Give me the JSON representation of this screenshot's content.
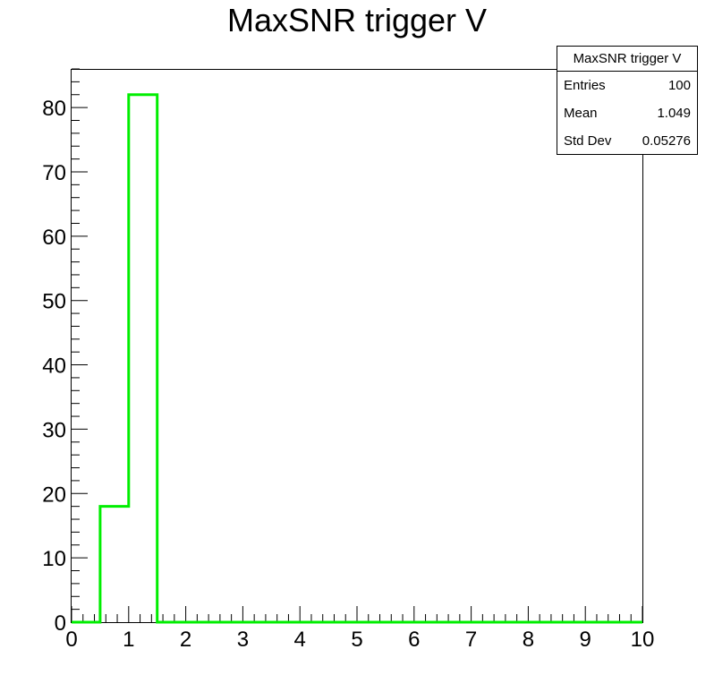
{
  "chart_data": {
    "type": "histogram",
    "title": "MaxSNR trigger V",
    "xlim": [
      0,
      10
    ],
    "ylim": [
      0,
      86
    ],
    "bin_width": 0.5,
    "bins": [
      {
        "x0": 0.0,
        "x1": 0.5,
        "value": 0
      },
      {
        "x0": 0.5,
        "x1": 1.0,
        "value": 18
      },
      {
        "x0": 1.0,
        "x1": 1.5,
        "value": 82
      },
      {
        "x0": 1.5,
        "x1": 2.0,
        "value": 0
      },
      {
        "x0": 2.0,
        "x1": 2.5,
        "value": 0
      },
      {
        "x0": 2.5,
        "x1": 3.0,
        "value": 0
      },
      {
        "x0": 3.0,
        "x1": 3.5,
        "value": 0
      },
      {
        "x0": 3.5,
        "x1": 4.0,
        "value": 0
      },
      {
        "x0": 4.0,
        "x1": 4.5,
        "value": 0
      },
      {
        "x0": 4.5,
        "x1": 5.0,
        "value": 0
      },
      {
        "x0": 5.0,
        "x1": 5.5,
        "value": 0
      },
      {
        "x0": 5.5,
        "x1": 6.0,
        "value": 0
      },
      {
        "x0": 6.0,
        "x1": 6.5,
        "value": 0
      },
      {
        "x0": 6.5,
        "x1": 7.0,
        "value": 0
      },
      {
        "x0": 7.0,
        "x1": 7.5,
        "value": 0
      },
      {
        "x0": 7.5,
        "x1": 8.0,
        "value": 0
      },
      {
        "x0": 8.0,
        "x1": 8.5,
        "value": 0
      },
      {
        "x0": 8.5,
        "x1": 9.0,
        "value": 0
      },
      {
        "x0": 9.0,
        "x1": 9.5,
        "value": 0
      },
      {
        "x0": 9.5,
        "x1": 10.0,
        "value": 0
      }
    ],
    "x_ticks": [
      "0",
      "1",
      "2",
      "3",
      "4",
      "5",
      "6",
      "7",
      "8",
      "9",
      "10"
    ],
    "y_ticks": [
      "0",
      "10",
      "20",
      "30",
      "40",
      "50",
      "60",
      "70",
      "80"
    ],
    "line_color": "#00ee00",
    "grid": false,
    "stats_box": {
      "title": "MaxSNR trigger V",
      "entries_label": "Entries",
      "entries_value": "100",
      "mean_label": "Mean",
      "mean_value": "1.049",
      "stddev_label": "Std Dev",
      "stddev_value": "0.05276"
    }
  }
}
